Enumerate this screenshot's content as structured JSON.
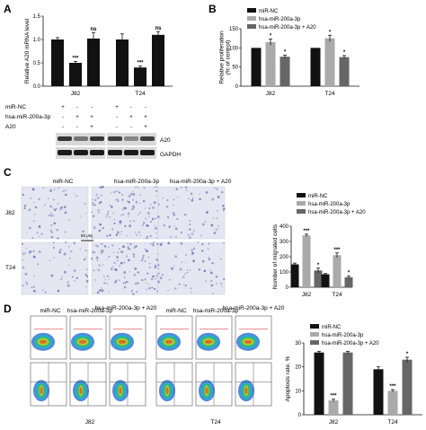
{
  "panel_labels": {
    "a": "A",
    "b": "B",
    "c": "C",
    "d": "D"
  },
  "conditions": {
    "miR_NC": "miR-NC",
    "hsa": "hsa-miR-200a-3p",
    "hsa_a20": "hsa-miR-200a-3p + A20",
    "a20": "A20"
  },
  "treatment_table": {
    "rows": [
      "miR-NC",
      "hsa-miR-200a-3p",
      "A20"
    ],
    "signs": [
      [
        "+",
        "-",
        "-",
        "+",
        "-",
        "-"
      ],
      [
        "-",
        "+",
        "+",
        "-",
        "+",
        "+"
      ],
      [
        "-",
        "-",
        "+",
        "-",
        "-",
        "+"
      ]
    ]
  },
  "blot_labels": [
    "A20",
    "GAPDH"
  ],
  "micrograph": {
    "col_labels": [
      "miR-NC",
      "hsa-miR-200a-3p",
      "hsa-miR-200a-3p + A20"
    ],
    "row_labels": [
      "J82",
      "T24"
    ],
    "scale": "50 μM"
  },
  "flow": {
    "col_labels": [
      "miR-NC",
      "hsa-miR-200a-3p",
      "hsa-miR-200a-3p + A20"
    ],
    "bottom_labels": [
      "J82",
      "T24"
    ]
  },
  "chart_data": [
    {
      "id": "A",
      "type": "bar",
      "groups": [
        "J82",
        "T24"
      ],
      "series_per_group": [
        "miR-NC",
        "hsa-miR-200a-3p",
        "hsa-miR-200a-3p + A20"
      ],
      "values": [
        [
          1.0,
          0.5,
          1.02
        ],
        [
          1.0,
          0.4,
          1.1
        ]
      ],
      "errors": [
        [
          0.04,
          0.03,
          0.13
        ],
        [
          0.12,
          0.03,
          0.07
        ]
      ],
      "significance": [
        [
          "",
          "***",
          "ns"
        ],
        [
          "",
          "***",
          "ns"
        ]
      ],
      "ylabel": "Relative A20 mRNA level",
      "ylim": [
        0,
        1.5
      ],
      "yticks": [
        "0.0",
        "0.5",
        "1.0",
        "1.5"
      ]
    },
    {
      "id": "B",
      "type": "bar",
      "groups": [
        "J82",
        "T24"
      ],
      "series": [
        {
          "name": "miR-NC",
          "color": "#111111",
          "values": [
            100,
            100
          ]
        },
        {
          "name": "hsa-miR-200a-3p",
          "color": "#aaaaaa",
          "values": [
            115,
            125
          ]
        },
        {
          "name": "hsa-miR-200a-3p + A20",
          "color": "#666666",
          "values": [
            77,
            76
          ]
        }
      ],
      "errors": [
        [
          0,
          0
        ],
        [
          8,
          8
        ],
        [
          4,
          4
        ]
      ],
      "significance": [
        [
          "",
          "*",
          "*"
        ],
        [
          "",
          "*",
          "*"
        ]
      ],
      "ylabel": "Relative proliferation (% of control)",
      "ylim": [
        0,
        150
      ],
      "yticks": [
        "0",
        "50",
        "100",
        "150"
      ]
    },
    {
      "id": "C",
      "type": "bar",
      "groups": [
        "J82",
        "T24"
      ],
      "series": [
        {
          "name": "miR-NC",
          "color": "#111111",
          "values": [
            150,
            85
          ]
        },
        {
          "name": "hsa-miR-200a-3p",
          "color": "#aaaaaa",
          "values": [
            340,
            210
          ]
        },
        {
          "name": "hsa-miR-200a-3p + A20",
          "color": "#666666",
          "values": [
            110,
            65
          ]
        }
      ],
      "errors": [
        [
          8,
          5
        ],
        [
          8,
          15
        ],
        [
          15,
          8
        ]
      ],
      "significance": [
        [
          "",
          "***",
          "*"
        ],
        [
          "",
          "***",
          "*"
        ]
      ],
      "ylabel": "Number of migrated cells",
      "ylim": [
        0,
        400
      ],
      "yticks": [
        "0",
        "100",
        "200",
        "300",
        "400"
      ]
    },
    {
      "id": "D",
      "type": "bar",
      "groups": [
        "J82",
        "T24"
      ],
      "series": [
        {
          "name": "miR-NC",
          "color": "#111111",
          "values": [
            26,
            19
          ]
        },
        {
          "name": "hsa-miR-200a-3p",
          "color": "#aaaaaa",
          "values": [
            6,
            10
          ]
        },
        {
          "name": "hsa-miR-200a-3p + A20",
          "color": "#666666",
          "values": [
            26,
            23
          ]
        }
      ],
      "errors": [
        [
          0.5,
          1
        ],
        [
          0.5,
          0.5
        ],
        [
          0.5,
          1
        ]
      ],
      "significance": [
        [
          "",
          "***",
          ""
        ],
        [
          "",
          "***",
          "*"
        ]
      ],
      "ylabel": "Apoptosis rate, %",
      "ylim": [
        0,
        30
      ],
      "yticks": [
        "0",
        "10",
        "20",
        "30"
      ]
    }
  ]
}
